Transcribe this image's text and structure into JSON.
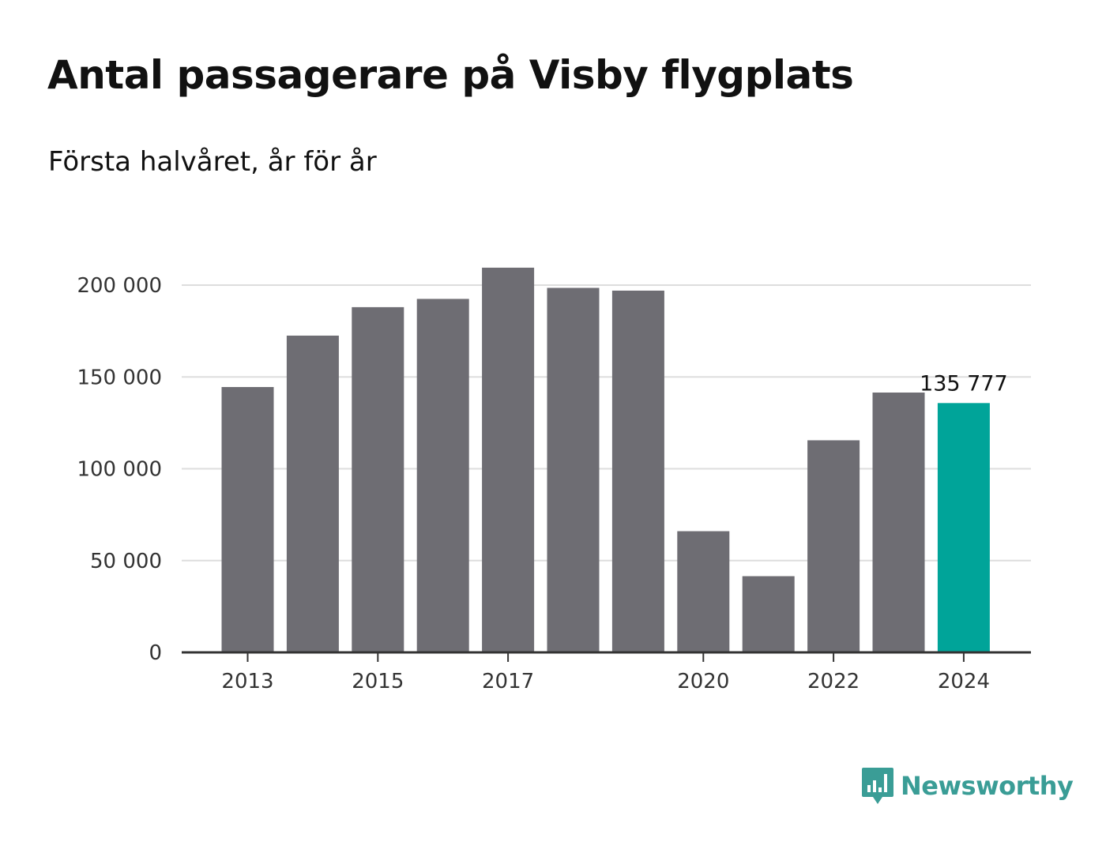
{
  "colors": {
    "bar": "#6e6d73",
    "highlight": "#00a499",
    "grid": "#dddddd",
    "axis": "#333333",
    "brand": "#3a9d96"
  },
  "logo": {
    "icon": "bar-chart-bubble-icon",
    "text": "Newsworthy"
  },
  "chart_data": {
    "type": "bar",
    "title": "Antal passagerare på Visby flygplats",
    "subtitle": "Första halvåret, år för år",
    "xlabel": "",
    "ylabel": "",
    "categories": [
      "2013",
      "2014",
      "2015",
      "2016",
      "2017",
      "2018",
      "2019",
      "2020",
      "2021",
      "2022",
      "2023",
      "2024"
    ],
    "values": [
      144500,
      172500,
      188000,
      192500,
      209500,
      198500,
      197000,
      66000,
      41500,
      115500,
      141500,
      135777
    ],
    "highlight_index": 11,
    "ylim": [
      0,
      215000
    ],
    "yticks": [
      0,
      50000,
      100000,
      150000,
      200000
    ],
    "ytick_labels": [
      "0",
      "50 000",
      "100 000",
      "150 000",
      "200 000"
    ],
    "xtick_labels": [
      "2013",
      "2015",
      "2017",
      "2020",
      "2022",
      "2024"
    ],
    "data_labels": [
      {
        "index": 11,
        "text": "135 777"
      }
    ],
    "grid": true,
    "legend": "none"
  }
}
